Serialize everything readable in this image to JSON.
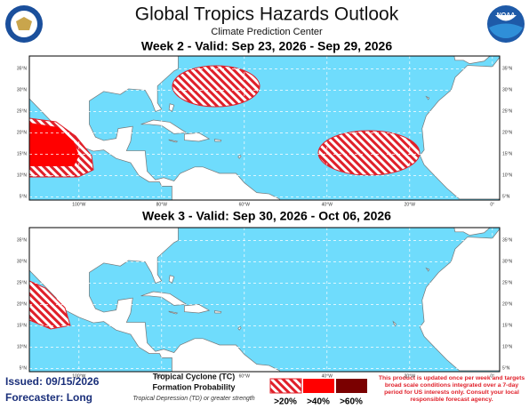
{
  "header": {
    "title": "Global Tropics Hazards Outlook",
    "subtitle": "Climate Prediction Center",
    "logo_text": "NOAA"
  },
  "panels": [
    {
      "heading": "Week 2 - Valid: Sep 23, 2026 - Sep 29, 2026"
    },
    {
      "heading": "Week 3 - Valid: Sep 30, 2026 - Oct 06, 2026"
    }
  ],
  "map": {
    "lon_labels": [
      "100°W",
      "80°W",
      "60°W",
      "40°W",
      "20°W",
      "0°"
    ],
    "lat_labels": [
      "35°N",
      "30°N",
      "25°N",
      "20°N",
      "15°N",
      "10°N",
      "5°N"
    ]
  },
  "footer": {
    "issued": "Issued: 09/15/2026",
    "forecaster": "Forecaster: Long",
    "legend_title": [
      "Tropical Cyclone (TC)",
      "Formation Probability"
    ],
    "legend_note": "Tropical Depression (TD) or greater strength",
    "legend_items": [
      ">20%",
      ">40%",
      ">60%"
    ],
    "disclaimer": [
      "This product is updated once per week and targets",
      "broad scale conditions integrated over a 7-day",
      "period for US interests only. Consult your local",
      "responsible forecast agency."
    ]
  }
}
